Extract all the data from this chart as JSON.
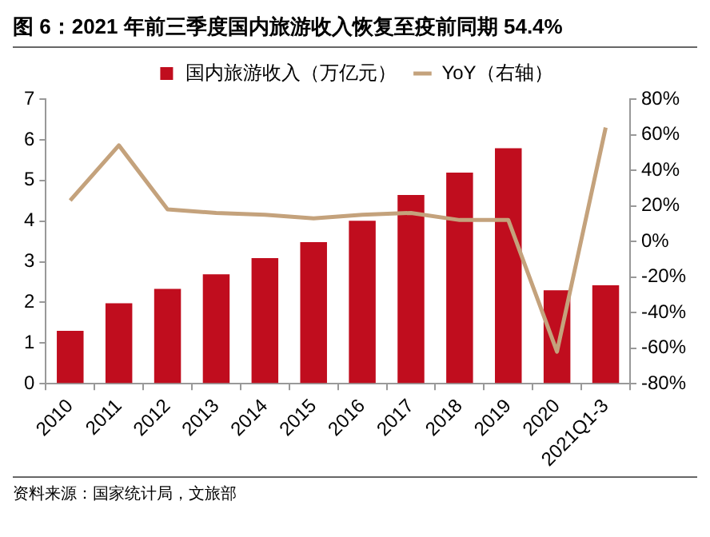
{
  "chart_data": {
    "type": "bar",
    "title": "图 6：2021 年前三季度国内旅游收入恢复至疫前同期 54.4%",
    "categories": [
      "2010",
      "2011",
      "2012",
      "2013",
      "2014",
      "2015",
      "2016",
      "2017",
      "2018",
      "2019",
      "2020",
      "2021Q1-3"
    ],
    "series": [
      {
        "name": "国内旅游收入（万亿元）",
        "color": "#c00d1e",
        "values": [
          1.3,
          1.98,
          2.33,
          2.69,
          3.09,
          3.48,
          4.01,
          4.64,
          5.19,
          5.79,
          2.3,
          2.42
        ]
      },
      {
        "name": "YoY（右轴）",
        "type": "line",
        "axis": "y2",
        "color": "#c4a27c",
        "values": [
          23,
          54,
          18,
          16,
          15,
          13,
          15,
          16,
          12,
          12,
          -62,
          64
        ]
      }
    ],
    "ylim": [
      0,
      7
    ],
    "yticks": [
      0,
      1,
      2,
      3,
      4,
      5,
      6,
      7
    ],
    "y2lim": [
      -80,
      80
    ],
    "y2ticks": [
      {
        "value": -80,
        "label": "-80%"
      },
      {
        "value": -60,
        "label": "-60%"
      },
      {
        "value": -40,
        "label": "-40%"
      },
      {
        "value": -20,
        "label": "-20%"
      },
      {
        "value": 0,
        "label": "0%"
      },
      {
        "value": 20,
        "label": "20%"
      },
      {
        "value": 40,
        "label": "40%"
      },
      {
        "value": 60,
        "label": "60%"
      },
      {
        "value": 80,
        "label": "80%"
      }
    ],
    "grid": false,
    "legend": "top",
    "marker": "none",
    "line_style": "solid",
    "annotations": [
      "资料来源：国家统计局，文旅部"
    ]
  }
}
